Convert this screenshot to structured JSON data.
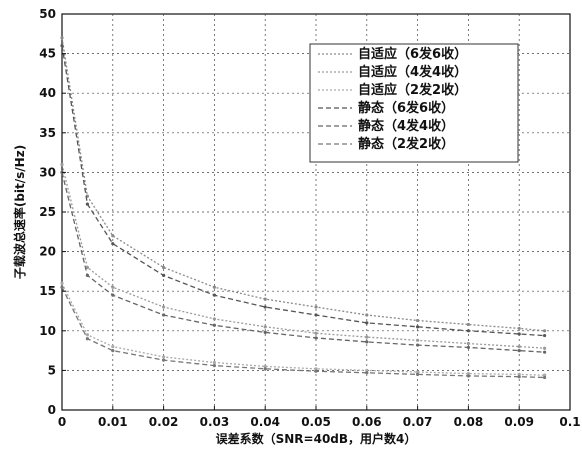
{
  "chart_data": {
    "type": "line",
    "title": "",
    "xlabel": "误差系数（SNR=40dB，用户数4）",
    "ylabel": "子载波总速率(bit/s/Hz)",
    "xlim": [
      0,
      0.1
    ],
    "ylim": [
      0,
      50
    ],
    "grid": true,
    "legend_position": "top-right",
    "x_ticks": [
      "0",
      "0.01",
      "0.02",
      "0.03",
      "0.04",
      "0.05",
      "0.06",
      "0.07",
      "0.08",
      "0.09",
      "0.1"
    ],
    "y_ticks": [
      "0",
      "5",
      "10",
      "15",
      "20",
      "25",
      "30",
      "35",
      "40",
      "45",
      "50"
    ],
    "series": [
      {
        "name": "自适应（6发6收）",
        "color": "#8a8a8a",
        "dash": "2,2",
        "x": [
          0,
          0.005,
          0.01,
          0.02,
          0.03,
          0.04,
          0.05,
          0.06,
          0.07,
          0.08,
          0.09,
          0.095
        ],
        "y": [
          47,
          27,
          22,
          18,
          15.5,
          14,
          13,
          12,
          11.3,
          10.8,
          10.3,
          10
        ]
      },
      {
        "name": "自适应（4发4收）",
        "color": "#9a9a9a",
        "dash": "2,2",
        "x": [
          0,
          0.005,
          0.01,
          0.02,
          0.03,
          0.04,
          0.05,
          0.06,
          0.07,
          0.08,
          0.09,
          0.095
        ],
        "y": [
          31,
          18,
          15.5,
          13,
          11.5,
          10.5,
          9.7,
          9.2,
          8.8,
          8.4,
          8,
          7.8
        ]
      },
      {
        "name": "自适应（2发2收）",
        "color": "#aaaaaa",
        "dash": "2,2",
        "x": [
          0,
          0.005,
          0.01,
          0.02,
          0.03,
          0.04,
          0.05,
          0.06,
          0.07,
          0.08,
          0.09,
          0.095
        ],
        "y": [
          16,
          9.5,
          8,
          6.7,
          6,
          5.5,
          5.2,
          5,
          4.8,
          4.6,
          4.5,
          4.4
        ]
      },
      {
        "name": "静态（6发6收）",
        "color": "#555555",
        "dash": "5,3",
        "x": [
          0,
          0.005,
          0.01,
          0.02,
          0.03,
          0.04,
          0.05,
          0.06,
          0.07,
          0.08,
          0.09,
          0.095
        ],
        "y": [
          46,
          26,
          21,
          17,
          14.5,
          13,
          12,
          11,
          10.5,
          10,
          9.6,
          9.4
        ]
      },
      {
        "name": "静态（4发4收）",
        "color": "#666666",
        "dash": "5,3",
        "x": [
          0,
          0.005,
          0.01,
          0.02,
          0.03,
          0.04,
          0.05,
          0.06,
          0.07,
          0.08,
          0.09,
          0.095
        ],
        "y": [
          30,
          17,
          14.5,
          12,
          10.7,
          9.8,
          9.1,
          8.6,
          8.2,
          7.9,
          7.5,
          7.3
        ]
      },
      {
        "name": "静态（2发2收）",
        "color": "#777777",
        "dash": "5,3",
        "x": [
          0,
          0.005,
          0.01,
          0.02,
          0.03,
          0.04,
          0.05,
          0.06,
          0.07,
          0.08,
          0.09,
          0.095
        ],
        "y": [
          15.5,
          9,
          7.5,
          6.3,
          5.6,
          5.2,
          4.9,
          4.7,
          4.5,
          4.3,
          4.2,
          4.1
        ]
      }
    ]
  }
}
